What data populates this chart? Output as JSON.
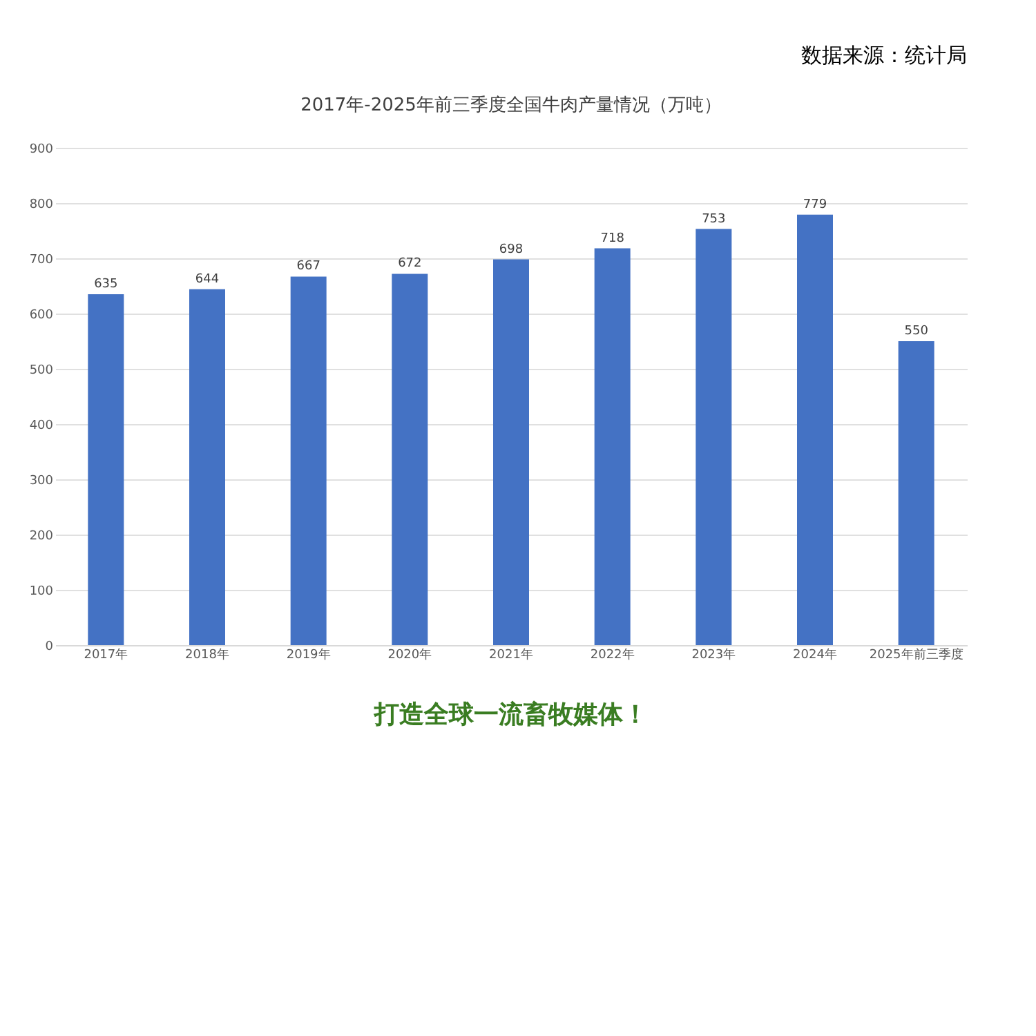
{
  "chart_data": {
    "type": "bar",
    "title": "2017年-2025年前三季度全国牛肉产量情况（万吨）",
    "categories": [
      "2017年",
      "2018年",
      "2019年",
      "2020年",
      "2021年",
      "2022年",
      "2023年",
      "2024年",
      "2025年前三季度"
    ],
    "values": [
      635,
      644,
      667,
      672,
      698,
      718,
      753,
      779,
      550
    ],
    "color": "#4472c4",
    "ylim": [
      0,
      900
    ],
    "yticks": [
      0,
      100,
      200,
      300,
      400,
      500,
      600,
      700,
      800,
      900
    ],
    "grid": "y",
    "data_labels": true,
    "annotations": [
      "数据来源：统计局",
      "打造全球一流畜牧媒体！"
    ]
  }
}
